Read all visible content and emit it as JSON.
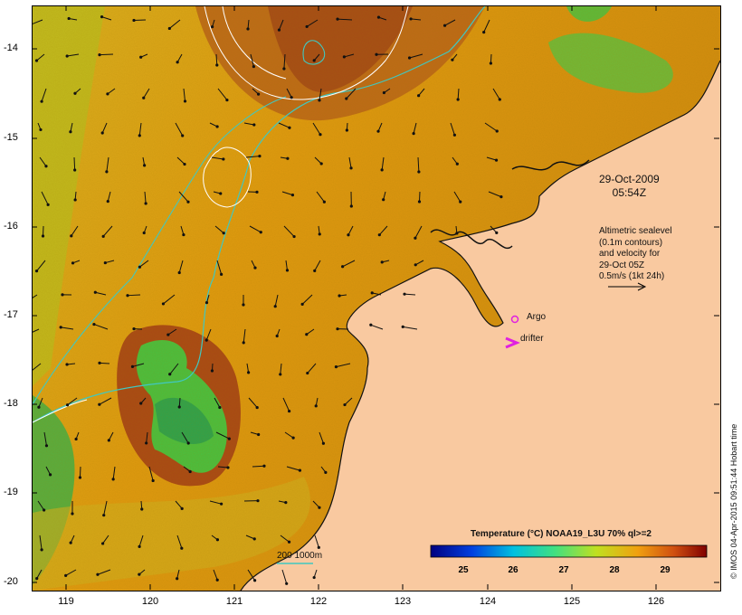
{
  "map": {
    "date_line1": "29-Oct-2009",
    "date_line2": "05:54Z",
    "legend_lines": [
      "Altimetric sealevel",
      "(0.1m contours)",
      "and velocity for",
      "29-Oct 05Z",
      "0.5m/s (1kt 24h)"
    ],
    "argo_label": "Argo",
    "drifter_label": "drifter",
    "contour_label": "200  1000m",
    "colorbar_title": "Temperature (°C) NOAA19_L3U 70% ql>=2",
    "colorbar_ticks": [
      "25",
      "26",
      "27",
      "28",
      "29"
    ],
    "side_text": "© IMOS 04-Apr-2015 09:51:44 Hobart time",
    "lat_labels": [
      "-14",
      "-15",
      "-16",
      "-17",
      "-18",
      "-19",
      "-20"
    ],
    "lon_labels": [
      "119",
      "120",
      "121",
      "122",
      "123",
      "124",
      "125",
      "126"
    ]
  },
  "colors": {
    "land": "#f9c9a0",
    "ocean_base": "#e09a10",
    "warm": "#b04a10",
    "cool_green": "#44c040",
    "contour_teal": "#40c8c0",
    "argo": "#e020e0",
    "drifter": "#e020e0"
  }
}
